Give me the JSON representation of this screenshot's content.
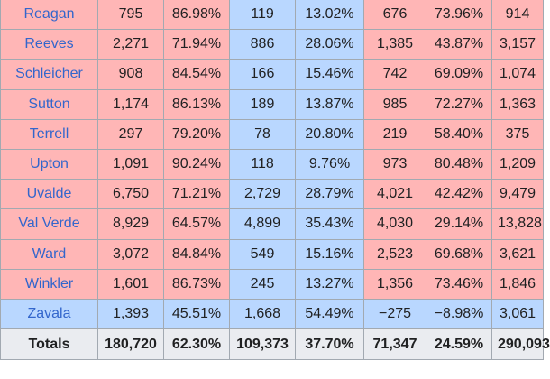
{
  "rows": [
    {
      "county": "Reagan",
      "rep_votes": "795",
      "rep_pct": "86.98%",
      "dem_votes": "119",
      "dem_pct": "13.02%",
      "margin_votes": "676",
      "margin_pct": "73.96%",
      "total": "914",
      "winner": "rep"
    },
    {
      "county": "Reeves",
      "rep_votes": "2,271",
      "rep_pct": "71.94%",
      "dem_votes": "886",
      "dem_pct": "28.06%",
      "margin_votes": "1,385",
      "margin_pct": "43.87%",
      "total": "3,157",
      "winner": "rep"
    },
    {
      "county": "Schleicher",
      "rep_votes": "908",
      "rep_pct": "84.54%",
      "dem_votes": "166",
      "dem_pct": "15.46%",
      "margin_votes": "742",
      "margin_pct": "69.09%",
      "total": "1,074",
      "winner": "rep"
    },
    {
      "county": "Sutton",
      "rep_votes": "1,174",
      "rep_pct": "86.13%",
      "dem_votes": "189",
      "dem_pct": "13.87%",
      "margin_votes": "985",
      "margin_pct": "72.27%",
      "total": "1,363",
      "winner": "rep"
    },
    {
      "county": "Terrell",
      "rep_votes": "297",
      "rep_pct": "79.20%",
      "dem_votes": "78",
      "dem_pct": "20.80%",
      "margin_votes": "219",
      "margin_pct": "58.40%",
      "total": "375",
      "winner": "rep"
    },
    {
      "county": "Upton",
      "rep_votes": "1,091",
      "rep_pct": "90.24%",
      "dem_votes": "118",
      "dem_pct": "9.76%",
      "margin_votes": "973",
      "margin_pct": "80.48%",
      "total": "1,209",
      "winner": "rep"
    },
    {
      "county": "Uvalde",
      "rep_votes": "6,750",
      "rep_pct": "71.21%",
      "dem_votes": "2,729",
      "dem_pct": "28.79%",
      "margin_votes": "4,021",
      "margin_pct": "42.42%",
      "total": "9,479",
      "winner": "rep"
    },
    {
      "county": "Val Verde",
      "rep_votes": "8,929",
      "rep_pct": "64.57%",
      "dem_votes": "4,899",
      "dem_pct": "35.43%",
      "margin_votes": "4,030",
      "margin_pct": "29.14%",
      "total": "13,828",
      "winner": "rep"
    },
    {
      "county": "Ward",
      "rep_votes": "3,072",
      "rep_pct": "84.84%",
      "dem_votes": "549",
      "dem_pct": "15.16%",
      "margin_votes": "2,523",
      "margin_pct": "69.68%",
      "total": "3,621",
      "winner": "rep"
    },
    {
      "county": "Winkler",
      "rep_votes": "1,601",
      "rep_pct": "86.73%",
      "dem_votes": "245",
      "dem_pct": "13.27%",
      "margin_votes": "1,356",
      "margin_pct": "73.46%",
      "total": "1,846",
      "winner": "rep"
    },
    {
      "county": "Zavala",
      "rep_votes": "1,393",
      "rep_pct": "45.51%",
      "dem_votes": "1,668",
      "dem_pct": "54.49%",
      "margin_votes": "−275",
      "margin_pct": "−8.98%",
      "total": "3,061",
      "winner": "dem"
    }
  ],
  "totals": {
    "label": "Totals",
    "rep_votes": "180,720",
    "rep_pct": "62.30%",
    "dem_votes": "109,373",
    "dem_pct": "37.70%",
    "margin_votes": "71,347",
    "margin_pct": "24.59%",
    "total": "290,093"
  },
  "colors": {
    "rep_fill": "#ffb6b6",
    "dem_fill": "#b9d7ff",
    "totals_fill": "#eaecf0",
    "link": "#3366cc",
    "border": "#a2a9b1"
  }
}
